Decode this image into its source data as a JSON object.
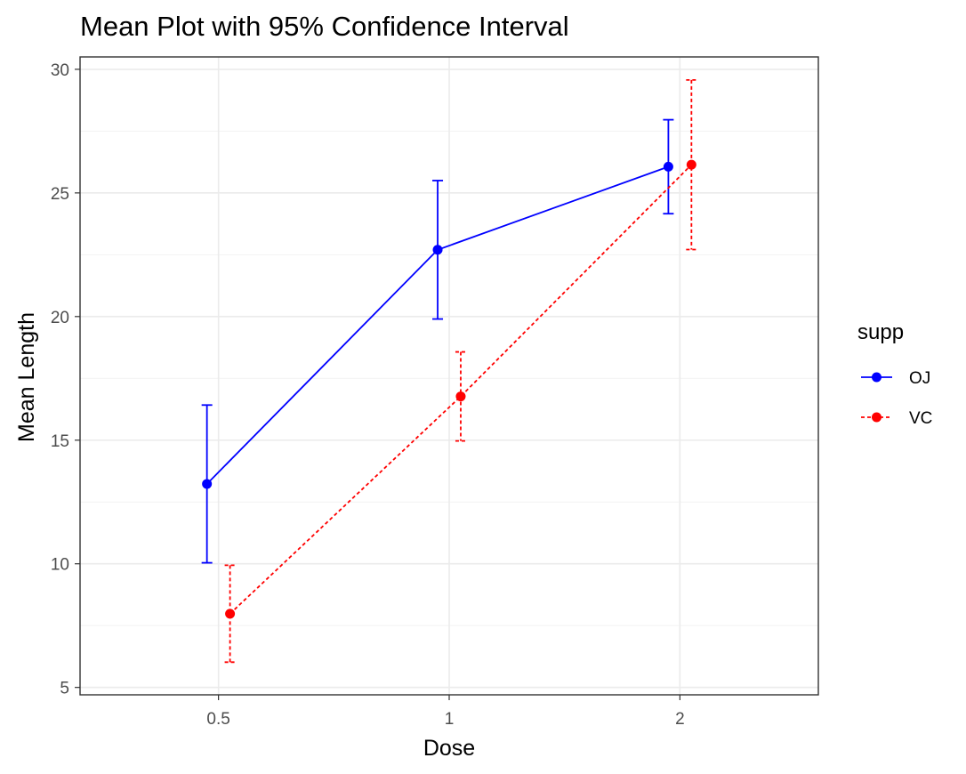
{
  "chart_data": {
    "type": "line",
    "title": "Mean Plot with 95% Confidence Interval",
    "xlabel": "Dose",
    "ylabel": "Mean Length",
    "categories": [
      "0.5",
      "1",
      "2"
    ],
    "ylim": [
      4.7,
      30.5
    ],
    "yticks": [
      5,
      10,
      15,
      20,
      25,
      30
    ],
    "grid": true,
    "legend": {
      "title": "supp",
      "position": "right"
    },
    "series": [
      {
        "name": "OJ",
        "color": "#0000ff",
        "linestyle": "solid",
        "marker": "circle",
        "dodge": -0.05,
        "values": [
          13.23,
          22.7,
          26.06
        ],
        "ci_low": [
          10.04,
          19.9,
          24.16
        ],
        "ci_high": [
          16.42,
          25.5,
          27.96
        ]
      },
      {
        "name": "VC",
        "color": "#ff0000",
        "linestyle": "dotted",
        "marker": "circle",
        "dodge": 0.05,
        "values": [
          7.98,
          16.77,
          26.14
        ],
        "ci_low": [
          6.02,
          14.97,
          22.71
        ],
        "ci_high": [
          9.94,
          18.57,
          29.57
        ]
      }
    ]
  }
}
